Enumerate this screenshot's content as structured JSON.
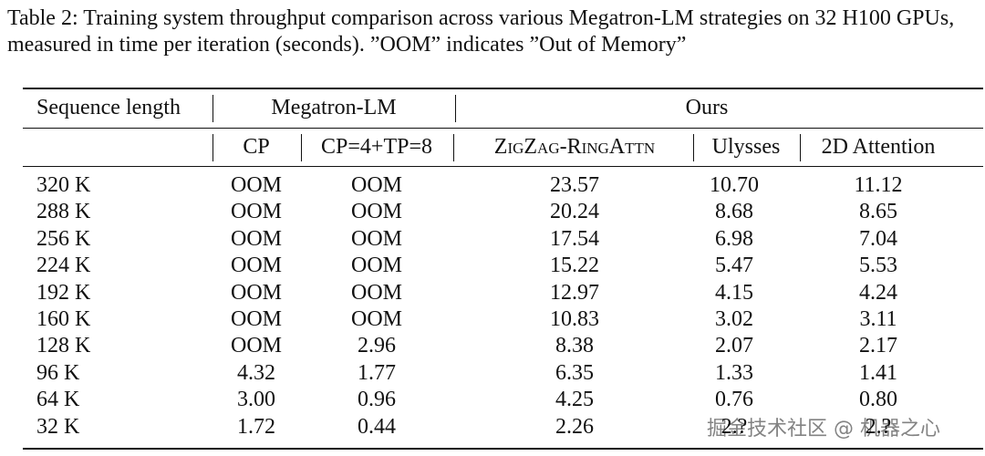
{
  "caption": "Table 2: Training system throughput comparison across various Megatron-LM strategies on 32 H100 GPUs, measured in time per iteration (seconds). ”OOM” indicates ”Out of Memory”",
  "table": {
    "header": [
      "Sequence length",
      "Megatron-LM",
      "Ours"
    ],
    "subheader": [
      "CP",
      "CP=4+TP=8",
      "ZigZag-RingAttn",
      "Ulysses",
      "2D Attention"
    ],
    "rows": [
      [
        "320 K",
        "OOM",
        "OOM",
        "23.57",
        "10.70",
        "11.12"
      ],
      [
        "288 K",
        "OOM",
        "OOM",
        "20.24",
        "8.68",
        "8.65"
      ],
      [
        "256 K",
        "OOM",
        "OOM",
        "17.54",
        "6.98",
        "7.04"
      ],
      [
        "224 K",
        "OOM",
        "OOM",
        "15.22",
        "5.47",
        "5.53"
      ],
      [
        "192 K",
        "OOM",
        "OOM",
        "12.97",
        "4.15",
        "4.24"
      ],
      [
        "160 K",
        "OOM",
        "OOM",
        "10.83",
        "3.02",
        "3.11"
      ],
      [
        "128 K",
        "OOM",
        "2.96",
        "8.38",
        "2.07",
        "2.17"
      ],
      [
        "96 K",
        "4.32",
        "1.77",
        "6.35",
        "1.33",
        "1.41"
      ],
      [
        "64 K",
        "3.00",
        "0.96",
        "4.25",
        "0.76",
        "0.80"
      ],
      [
        "32 K",
        "1.72",
        "0.44",
        "2.26",
        "2.?",
        "2.?"
      ]
    ]
  },
  "watermark": "掘金技术社区 @ 机器之心"
}
